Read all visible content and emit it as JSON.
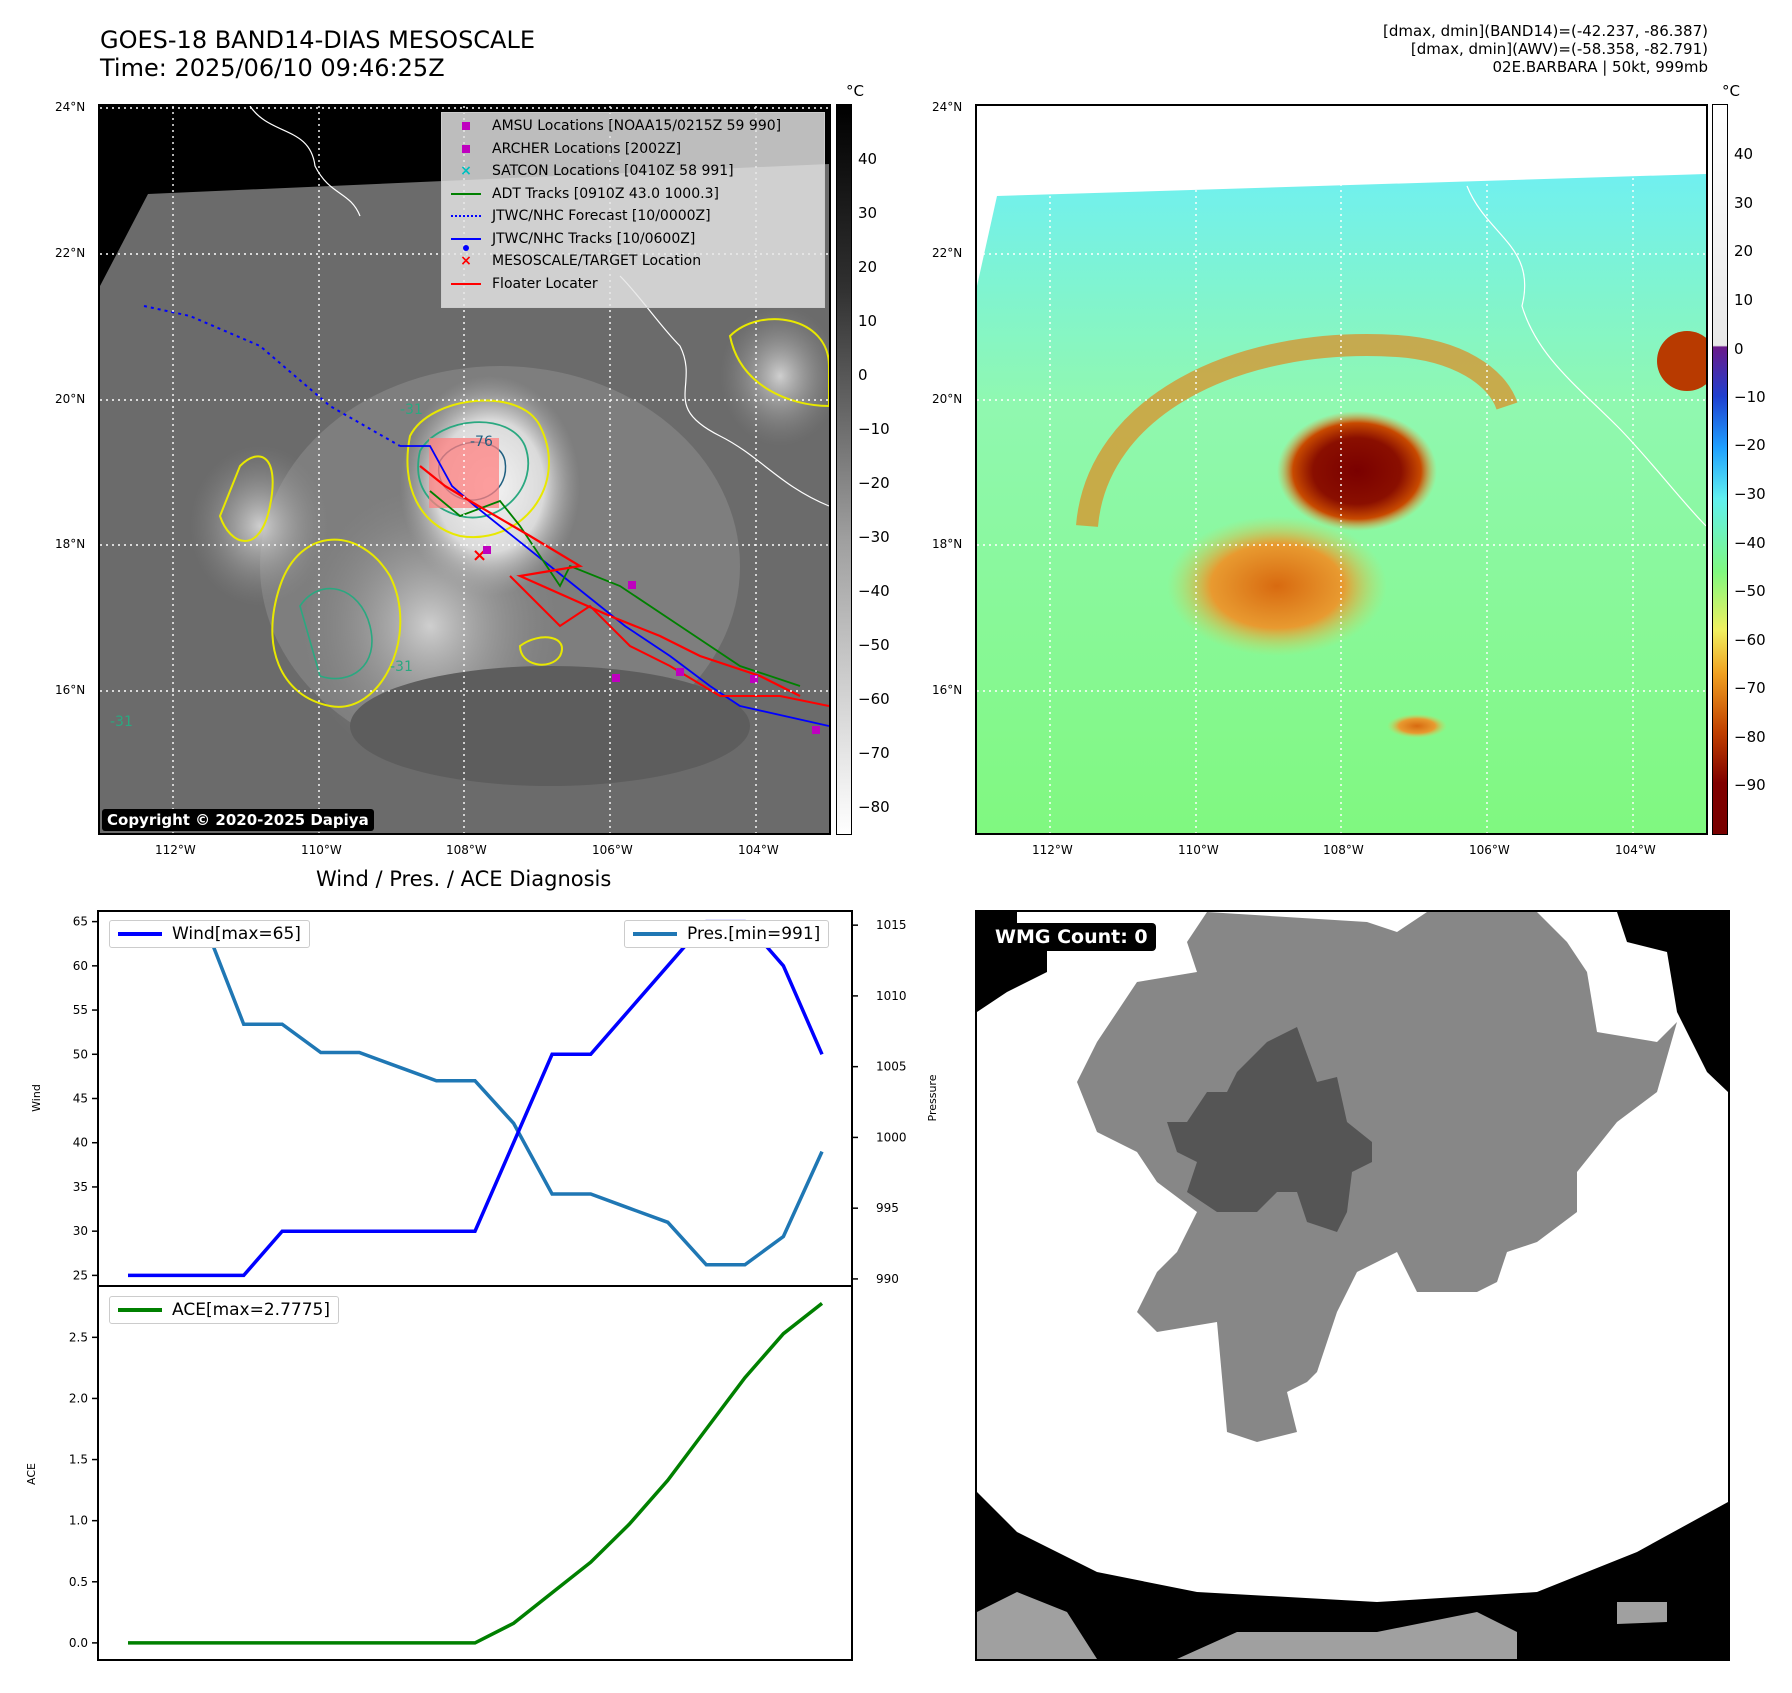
{
  "header": {
    "title_line1": "GOES-18 BAND14-DIAS MESOSCALE",
    "title_line2": "Time: 2025/06/10 09:46:25Z",
    "stats_line1": "[dmax, dmin](BAND14)=(-42.237, -86.387)",
    "stats_line2": "[dmax, dmin](AWV)=(-58.358, -82.791)",
    "stats_line3": "02E.BARBARA | 50kt, 999mb"
  },
  "map_ir": {
    "lat_labels": [
      "24°N",
      "22°N",
      "20°N",
      "18°N",
      "16°N"
    ],
    "lon_labels": [
      "112°W",
      "110°W",
      "108°W",
      "106°W",
      "104°W"
    ],
    "colorbar_unit": "°C",
    "colorbar_ticks": [
      "40",
      "30",
      "20",
      "10",
      "0",
      "−10",
      "−20",
      "−30",
      "−40",
      "−50",
      "−60",
      "−70",
      "−80"
    ],
    "legend": [
      {
        "label": "AMSU Locations [NOAA15/0215Z 59 990]",
        "color": "#bf00bf",
        "symbol": "square"
      },
      {
        "label": "ARCHER Locations [2002Z]",
        "color": "#bf00bf",
        "symbol": "square"
      },
      {
        "label": "SATCON Locations [0410Z 58 991]",
        "color": "#00bfbf",
        "symbol": "x"
      },
      {
        "label": "ADT Tracks [0910Z 43.0 1000.3]",
        "color": "#008000",
        "symbol": "line"
      },
      {
        "label": "JTWC/NHC Forecast [10/0000Z]",
        "color": "#0000ff",
        "symbol": "dotted"
      },
      {
        "label": "JTWC/NHC Tracks [10/0600Z]",
        "color": "#0000ff",
        "symbol": "line-dot"
      },
      {
        "label": "MESOSCALE/TARGET Location",
        "color": "#ff0000",
        "symbol": "x"
      },
      {
        "label": "Floater Locater",
        "color": "#ff0000",
        "symbol": "line"
      }
    ],
    "contour_labels": [
      "-76",
      "-31",
      "-31",
      "-31"
    ],
    "copyright": "Copyright © 2020-2025 Dapiya"
  },
  "map_awv": {
    "lat_labels": [
      "24°N",
      "22°N",
      "20°N",
      "18°N",
      "16°N"
    ],
    "lon_labels": [
      "112°W",
      "110°W",
      "108°W",
      "106°W",
      "104°W"
    ],
    "colorbar_unit": "°C",
    "colorbar_ticks": [
      "40",
      "30",
      "20",
      "10",
      "0",
      "−10",
      "−20",
      "−30",
      "−40",
      "−50",
      "−60",
      "−70",
      "−80",
      "−90"
    ]
  },
  "wmg": {
    "label": "WMG Count: 0",
    "colors": {
      "black": "#000000",
      "white": "#ffffff",
      "mid_gray": "#878787",
      "dark_gray": "#555555",
      "light_gray": "#a0a0a0"
    }
  },
  "chart_data": [
    {
      "type": "line",
      "title": "Wind / Pres. / ACE Diagnosis",
      "ylabel": "Wind",
      "y2label": "Pressure",
      "x": [
        0,
        1,
        2,
        3,
        4,
        5,
        6,
        7,
        8,
        9,
        10,
        11,
        12,
        13,
        14,
        15,
        16,
        17,
        18
      ],
      "series": [
        {
          "name": "Wind[max=65]",
          "axis": "left",
          "color": "#0000ff",
          "values": [
            25,
            25,
            25,
            25,
            30,
            30,
            30,
            30,
            30,
            30,
            40,
            50,
            50,
            55,
            60,
            65,
            65,
            60,
            50
          ]
        },
        {
          "name": "Pres.[min=991]",
          "axis": "right",
          "color": "#1f77b4",
          "values": [
            1015,
            1015,
            1015,
            1008,
            1008,
            1006,
            1006,
            1005,
            1004,
            1004,
            1001,
            996,
            996,
            995,
            994,
            991,
            991,
            993,
            999
          ]
        }
      ],
      "yticks": [
        "25",
        "30",
        "35",
        "40",
        "45",
        "50",
        "55",
        "60",
        "65"
      ],
      "y2ticks": [
        "990",
        "995",
        "1000",
        "1005",
        "1010",
        "1015"
      ],
      "ylim": [
        23.8,
        66.2
      ],
      "y2lim": [
        989.5,
        1016
      ]
    },
    {
      "type": "line",
      "ylabel": "ACE",
      "x": [
        0,
        1,
        2,
        3,
        4,
        5,
        6,
        7,
        8,
        9,
        10,
        11,
        12,
        13,
        14,
        15,
        16,
        17,
        18
      ],
      "series": [
        {
          "name": "ACE[max=2.7775]",
          "color": "#008000",
          "values": [
            0,
            0,
            0,
            0,
            0,
            0,
            0,
            0,
            0,
            0,
            0.16,
            0.41,
            0.66,
            0.97,
            1.33,
            1.75,
            2.17,
            2.53,
            2.7775
          ]
        }
      ],
      "yticks": [
        "0.0",
        "0.5",
        "1.0",
        "1.5",
        "2.0",
        "2.5"
      ],
      "ylim": [
        -0.14,
        2.92
      ]
    }
  ]
}
